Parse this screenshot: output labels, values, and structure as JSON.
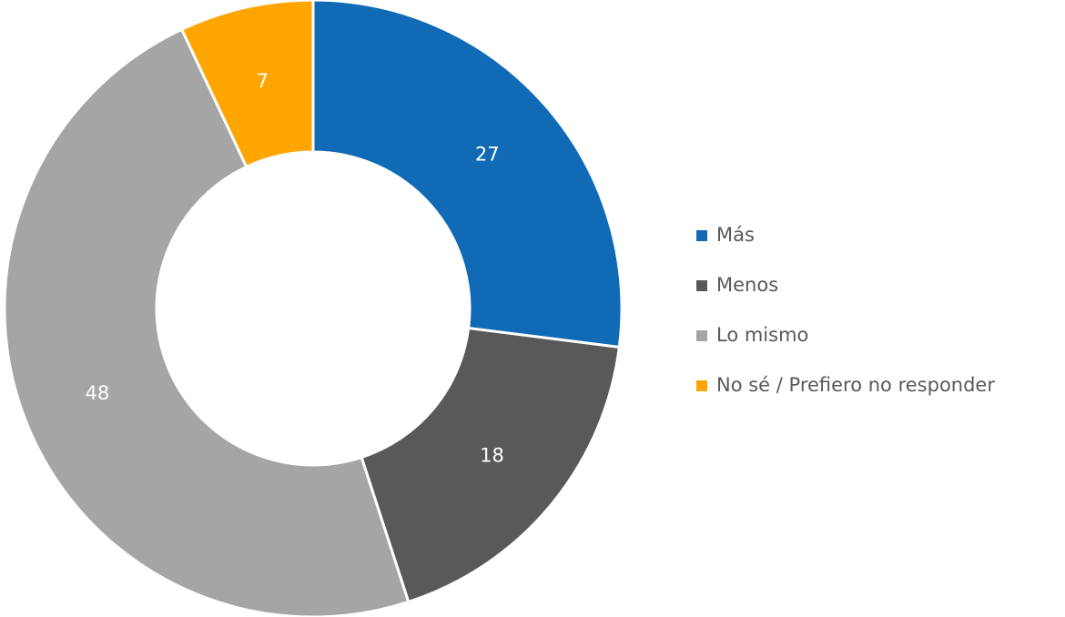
{
  "chart_data": {
    "type": "doughnut",
    "categories": [
      "Más",
      "Menos",
      "Lo mismo",
      "No sé / Prefiero no responder"
    ],
    "values": [
      27,
      18,
      48,
      7
    ],
    "colors": [
      "#106ab5",
      "#595959",
      "#a5a5a5",
      "#ffa500"
    ],
    "legend": "right"
  }
}
